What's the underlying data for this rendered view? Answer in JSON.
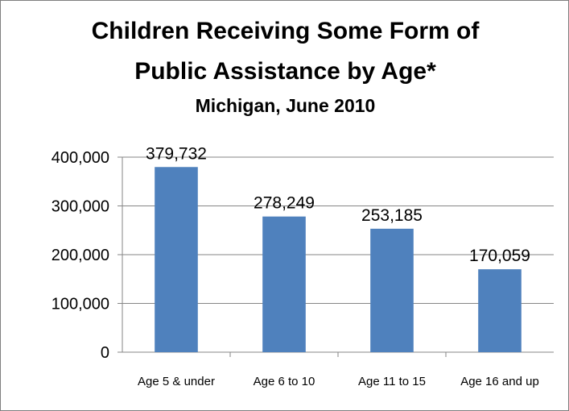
{
  "chart_data": {
    "type": "bar",
    "title": "Children Receiving Some Form of Public Assistance by Age*",
    "title_lines": [
      "Children Receiving Some Form of",
      "Public Assistance by Age*"
    ],
    "subtitle": "Michigan,  June 2010",
    "categories": [
      "Age 5 & under",
      "Age 6 to 10",
      "Age 11 to 15",
      "Age 16 and up"
    ],
    "values": [
      379732,
      278249,
      253185,
      170059
    ],
    "value_labels": [
      "379,732",
      "278,249",
      "253,185",
      "170,059"
    ],
    "ylim": [
      0,
      400000
    ],
    "yticks": [
      0,
      100000,
      200000,
      300000,
      400000
    ],
    "ytick_labels": [
      "0",
      "100,000",
      "200,000",
      "300,000",
      "400,000"
    ],
    "grid": true,
    "legend": "none",
    "bar_color": "#4f81bd",
    "grid_color": "#868686"
  }
}
